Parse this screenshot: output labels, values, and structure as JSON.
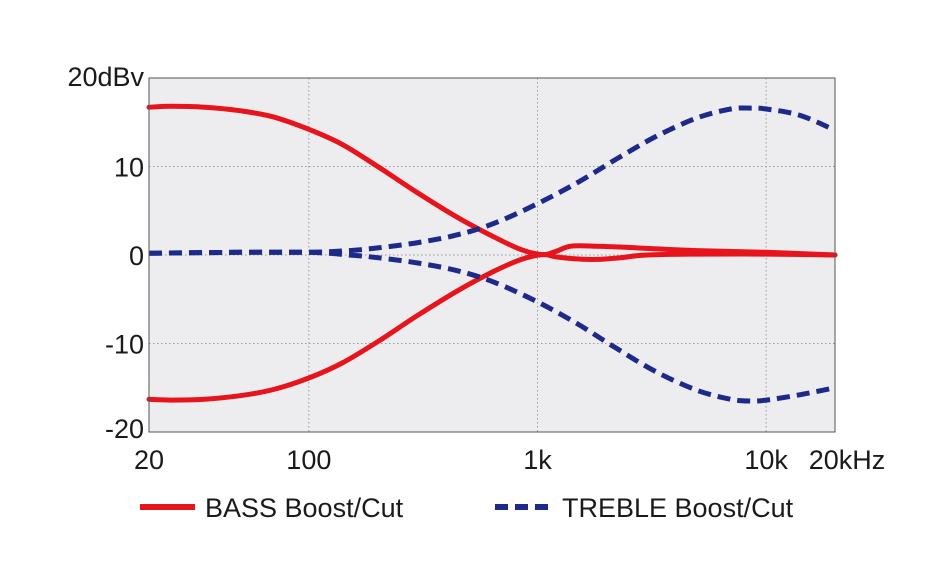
{
  "chart_data": {
    "type": "line",
    "title": "",
    "xlabel": "",
    "ylabel": "",
    "x_scale": "log",
    "xlim": [
      20,
      20000
    ],
    "ylim": [
      -20,
      20
    ],
    "grid": true,
    "legend_position": "bottom",
    "x_ticks": [
      {
        "value": 20,
        "label": "20"
      },
      {
        "value": 100,
        "label": "100"
      },
      {
        "value": 1000,
        "label": "1k"
      },
      {
        "value": 10000,
        "label": "10k"
      },
      {
        "value": 20000,
        "label": "20kHz"
      }
    ],
    "y_ticks": [
      {
        "value": 20,
        "label": "20dBv"
      },
      {
        "value": 10,
        "label": "10"
      },
      {
        "value": 0,
        "label": "0"
      },
      {
        "value": -10,
        "label": "-10"
      },
      {
        "value": -20,
        "label": "-20"
      }
    ],
    "series": [
      {
        "name": "BASS Boost/Cut",
        "legend": true,
        "color": "#e8141c",
        "style": "solid",
        "x": [
          20,
          25,
          35,
          50,
          70,
          100,
          140,
          200,
          300,
          450,
          650,
          850,
          1050,
          1200,
          1400,
          1800,
          2300,
          3000,
          5000,
          10000,
          20000
        ],
        "y": [
          16.7,
          16.8,
          16.7,
          16.3,
          15.6,
          14.2,
          12.5,
          10,
          7,
          4.2,
          2,
          0.6,
          0.05,
          0.4,
          1,
          1,
          0.9,
          0.75,
          0.5,
          0.3,
          0
        ]
      },
      {
        "name": "BASS Boost/Cut",
        "legend": false,
        "color": "#e8141c",
        "style": "solid",
        "x": [
          20,
          25,
          35,
          50,
          70,
          100,
          140,
          200,
          300,
          450,
          650,
          850,
          1050,
          1200,
          1400,
          1800,
          2300,
          3000,
          5000,
          10000,
          20000
        ],
        "y": [
          -16.3,
          -16.4,
          -16.3,
          -15.9,
          -15.2,
          -13.9,
          -12.2,
          -9.8,
          -6.8,
          -4,
          -1.8,
          -0.5,
          0.05,
          -0.2,
          -0.4,
          -0.5,
          -0.3,
          0,
          0.1,
          0.1,
          0
        ]
      },
      {
        "name": "TREBLE Boost/Cut",
        "legend": true,
        "color": "#1e2a8a",
        "style": "dashed",
        "x": [
          20,
          50,
          100,
          150,
          200,
          300,
          450,
          650,
          1000,
          1500,
          2200,
          3300,
          5000,
          7000,
          8500,
          10000,
          14000,
          20000
        ],
        "y": [
          0.2,
          0.3,
          0.3,
          0.5,
          0.8,
          1.4,
          2.3,
          3.6,
          5.8,
          8.2,
          10.8,
          13.4,
          15.5,
          16.5,
          16.6,
          16.5,
          15.8,
          14.1
        ]
      },
      {
        "name": "TREBLE Boost/Cut",
        "legend": false,
        "color": "#1e2a8a",
        "style": "dashed",
        "x": [
          20,
          50,
          100,
          150,
          200,
          300,
          450,
          650,
          1000,
          1500,
          2200,
          3300,
          5000,
          7000,
          8500,
          10000,
          14000,
          20000
        ],
        "y": [
          0.2,
          0.3,
          0.3,
          0,
          -0.3,
          -0.9,
          -1.8,
          -3.1,
          -5.3,
          -7.8,
          -10.5,
          -13.2,
          -15.3,
          -16.3,
          -16.5,
          -16.4,
          -15.8,
          -15
        ]
      }
    ]
  }
}
